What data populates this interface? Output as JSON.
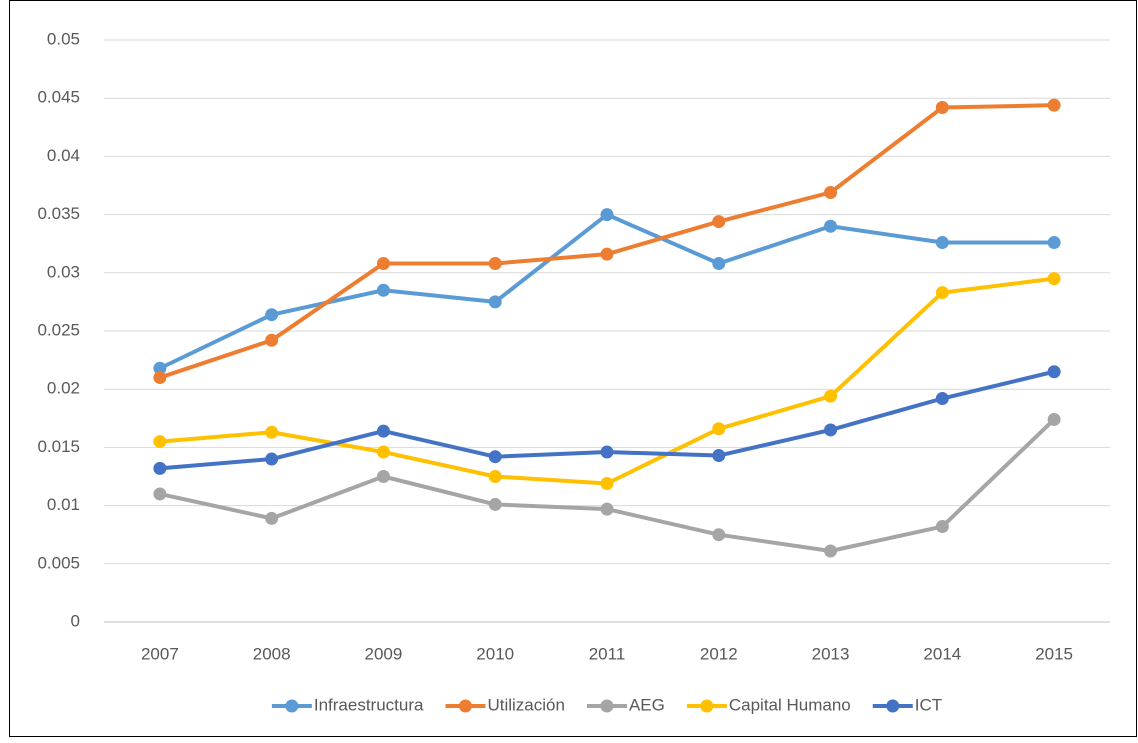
{
  "chart_data": {
    "type": "line",
    "categories": [
      "2007",
      "2008",
      "2009",
      "2010",
      "2011",
      "2012",
      "2013",
      "2014",
      "2015"
    ],
    "series": [
      {
        "name": "Infraestructura",
        "color": "#5b9bd5",
        "values": [
          0.0218,
          0.0264,
          0.0285,
          0.0275,
          0.035,
          0.0308,
          0.034,
          0.0326,
          0.0326
        ]
      },
      {
        "name": "Utilización",
        "color": "#ed7d31",
        "values": [
          0.021,
          0.0242,
          0.0308,
          0.0308,
          0.0316,
          0.0344,
          0.0369,
          0.0442,
          0.0444
        ]
      },
      {
        "name": "AEG",
        "color": "#a5a5a5",
        "values": [
          0.011,
          0.0089,
          0.0125,
          0.0101,
          0.0097,
          0.0075,
          0.0061,
          0.0082,
          0.0174
        ]
      },
      {
        "name": "Capital Humano",
        "color": "#ffc000",
        "values": [
          0.0155,
          0.0163,
          0.0146,
          0.0125,
          0.0119,
          0.0166,
          0.0194,
          0.0283,
          0.0295
        ]
      },
      {
        "name": "ICT",
        "color": "#4472c4",
        "values": [
          0.0132,
          0.014,
          0.0164,
          0.0142,
          0.0146,
          0.0143,
          0.0165,
          0.0192,
          0.0215
        ]
      }
    ],
    "ylim": [
      0,
      0.05
    ],
    "yticks": [
      0,
      0.005,
      0.01,
      0.015,
      0.02,
      0.025,
      0.03,
      0.035,
      0.04,
      0.045,
      0.05
    ],
    "grid": true,
    "legend": "bottom"
  }
}
